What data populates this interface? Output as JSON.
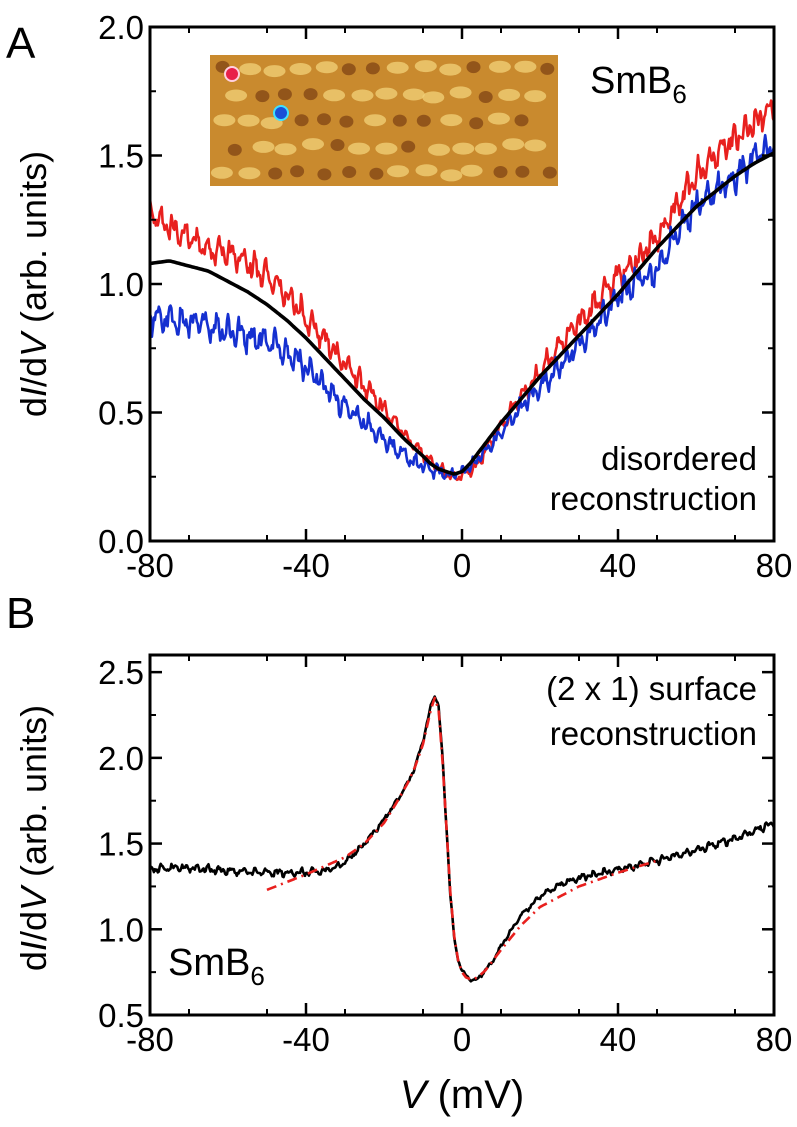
{
  "chart_data": [
    {
      "panel": "A",
      "type": "line",
      "xlabel": "",
      "ylabel": [
        "d",
        "I",
        "/d",
        "V",
        " (arb. units)"
      ],
      "xlim": [
        -80,
        80
      ],
      "ylim": [
        0.0,
        2.0
      ],
      "xticks": [
        -80,
        -40,
        0,
        40,
        80
      ],
      "xtick_labels": [
        "-80",
        "-40",
        "0",
        "40",
        "80"
      ],
      "yticks": [
        0.0,
        0.5,
        1.0,
        1.5,
        2.0
      ],
      "ytick_labels": [
        "0.0",
        "0.5",
        "1.0",
        "1.5",
        "2.0"
      ],
      "material": {
        "base": "SmB",
        "sub": "6"
      },
      "annotation": [
        "disordered",
        "reconstruction"
      ],
      "inset": {
        "type": "STM topography image",
        "markers": [
          {
            "color": "#e8204a",
            "label": "red spot"
          },
          {
            "color": "#1a4fd6",
            "label": "blue spot"
          }
        ]
      },
      "series": [
        {
          "name": "red spectrum",
          "color": "#e8201e",
          "noise": 0.055,
          "x": [
            -80,
            -75,
            -70,
            -65,
            -60,
            -55,
            -50,
            -45,
            -40,
            -35,
            -30,
            -25,
            -20,
            -15,
            -10,
            -8,
            -6,
            -4,
            -2,
            0,
            2,
            4,
            6,
            8,
            10,
            15,
            20,
            25,
            30,
            35,
            40,
            45,
            50,
            55,
            60,
            65,
            70,
            75,
            80
          ],
          "y": [
            1.27,
            1.22,
            1.18,
            1.14,
            1.12,
            1.08,
            1.03,
            0.96,
            0.87,
            0.78,
            0.69,
            0.6,
            0.51,
            0.42,
            0.34,
            0.31,
            0.28,
            0.26,
            0.25,
            0.25,
            0.27,
            0.3,
            0.35,
            0.4,
            0.45,
            0.56,
            0.66,
            0.76,
            0.85,
            0.94,
            1.03,
            1.1,
            1.18,
            1.3,
            1.42,
            1.5,
            1.56,
            1.62,
            1.7
          ]
        },
        {
          "name": "blue spectrum",
          "color": "#1530d0",
          "noise": 0.055,
          "x": [
            -80,
            -75,
            -70,
            -65,
            -60,
            -55,
            -50,
            -45,
            -40,
            -35,
            -30,
            -25,
            -20,
            -15,
            -10,
            -8,
            -6,
            -4,
            -2,
            0,
            2,
            4,
            6,
            8,
            10,
            15,
            20,
            25,
            30,
            35,
            40,
            45,
            50,
            55,
            60,
            65,
            70,
            75,
            80
          ],
          "y": [
            0.87,
            0.86,
            0.85,
            0.84,
            0.82,
            0.8,
            0.78,
            0.74,
            0.68,
            0.6,
            0.52,
            0.46,
            0.4,
            0.33,
            0.29,
            0.28,
            0.27,
            0.26,
            0.26,
            0.27,
            0.29,
            0.32,
            0.35,
            0.38,
            0.42,
            0.52,
            0.6,
            0.68,
            0.76,
            0.85,
            0.95,
            1.02,
            1.05,
            1.2,
            1.3,
            1.36,
            1.42,
            1.5,
            1.55
          ]
        },
        {
          "name": "average spectrum",
          "color": "#000000",
          "noise": 0,
          "x": [
            -80,
            -75,
            -70,
            -65,
            -60,
            -55,
            -50,
            -45,
            -40,
            -35,
            -30,
            -25,
            -20,
            -15,
            -10,
            -8,
            -6,
            -4,
            -2,
            0,
            2,
            4,
            6,
            8,
            10,
            15,
            20,
            25,
            30,
            35,
            40,
            45,
            50,
            55,
            60,
            65,
            70,
            75,
            80
          ],
          "y": [
            1.08,
            1.09,
            1.07,
            1.05,
            1.01,
            0.97,
            0.92,
            0.86,
            0.79,
            0.71,
            0.63,
            0.55,
            0.48,
            0.4,
            0.33,
            0.3,
            0.28,
            0.27,
            0.26,
            0.27,
            0.3,
            0.34,
            0.38,
            0.42,
            0.46,
            0.55,
            0.64,
            0.72,
            0.8,
            0.88,
            0.96,
            1.05,
            1.14,
            1.22,
            1.3,
            1.36,
            1.42,
            1.47,
            1.51
          ]
        }
      ]
    },
    {
      "panel": "B",
      "type": "line",
      "xlabel": [
        "V",
        " (mV)"
      ],
      "ylabel": [
        "d",
        "I",
        "/d",
        "V",
        " (arb. units)"
      ],
      "xlim": [
        -80,
        80
      ],
      "ylim": [
        0.5,
        2.6
      ],
      "xticks": [
        -80,
        -40,
        0,
        40,
        80
      ],
      "xtick_labels": [
        "-80",
        "-40",
        "0",
        "40",
        "80"
      ],
      "yticks": [
        0.5,
        1.0,
        1.5,
        2.0,
        2.5
      ],
      "ytick_labels": [
        "0.5",
        "1.0",
        "1.5",
        "2.0",
        "2.5"
      ],
      "material": {
        "base": "SmB",
        "sub": "6"
      },
      "annotation": [
        "(2 x 1) surface",
        "reconstruction"
      ],
      "series": [
        {
          "name": "measured spectrum",
          "color": "#000000",
          "noise": 0.022,
          "x": [
            -80,
            -70,
            -60,
            -50,
            -40,
            -35,
            -30,
            -25,
            -20,
            -17,
            -14,
            -12,
            -10,
            -9,
            -8,
            -7,
            -6,
            -5,
            -4,
            -3,
            -2,
            -1,
            0,
            1,
            2,
            3,
            4,
            6,
            8,
            10,
            15,
            20,
            25,
            30,
            40,
            50,
            60,
            70,
            80
          ],
          "y": [
            1.35,
            1.36,
            1.34,
            1.33,
            1.33,
            1.34,
            1.39,
            1.5,
            1.64,
            1.74,
            1.85,
            1.95,
            2.1,
            2.2,
            2.3,
            2.37,
            2.3,
            2.0,
            1.6,
            1.2,
            0.95,
            0.82,
            0.76,
            0.73,
            0.71,
            0.7,
            0.71,
            0.76,
            0.82,
            0.9,
            1.08,
            1.19,
            1.26,
            1.3,
            1.35,
            1.4,
            1.46,
            1.53,
            1.62
          ]
        },
        {
          "name": "Fano fit",
          "color": "#e8201e",
          "dashed": true,
          "noise": 0,
          "x": [
            -50,
            -40,
            -30,
            -25,
            -20,
            -17,
            -14,
            -12,
            -10,
            -9,
            -8,
            -7,
            -6,
            -5,
            -4,
            -3,
            -2,
            -1,
            0,
            1,
            2,
            3,
            4,
            6,
            8,
            10,
            15,
            20,
            30,
            40,
            50
          ],
          "y": [
            1.23,
            1.32,
            1.42,
            1.5,
            1.62,
            1.73,
            1.85,
            1.95,
            2.08,
            2.18,
            2.28,
            2.35,
            2.28,
            1.98,
            1.6,
            1.22,
            0.96,
            0.82,
            0.75,
            0.72,
            0.71,
            0.71,
            0.72,
            0.76,
            0.82,
            0.88,
            1.02,
            1.13,
            1.25,
            1.33,
            1.4
          ]
        }
      ]
    }
  ]
}
